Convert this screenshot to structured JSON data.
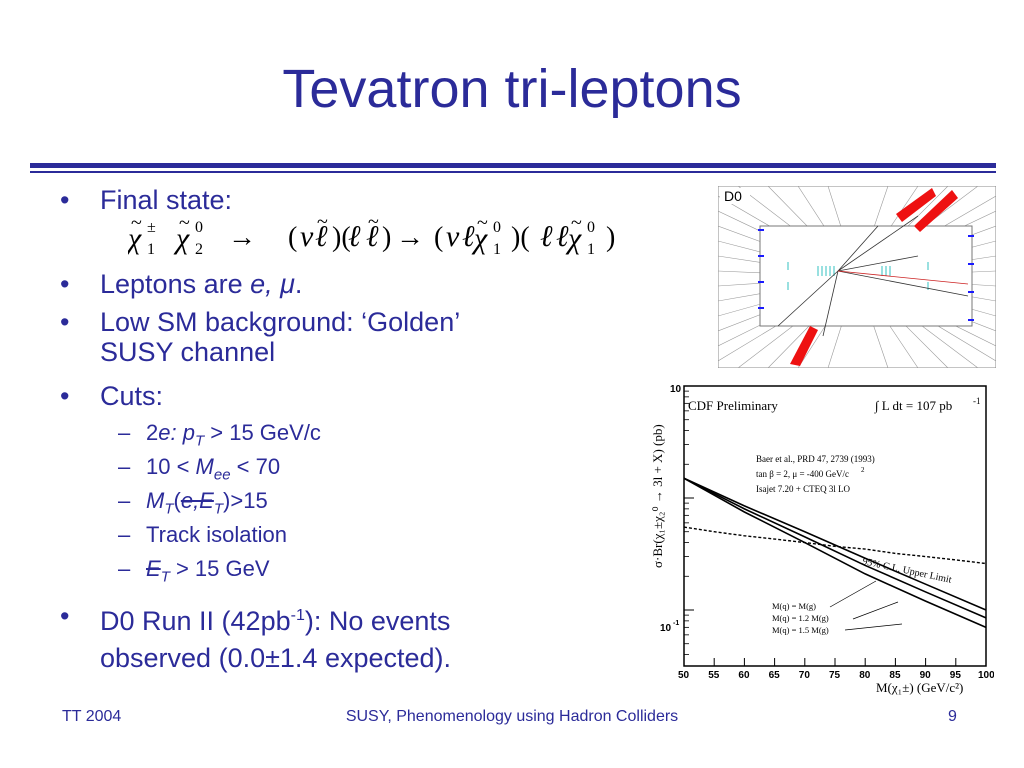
{
  "title": "Tevatron tri-leptons",
  "bullets": {
    "final_state": "Final state:",
    "leptons_prefix": "Leptons are ",
    "leptons_em": "e, μ",
    "leptons_suffix": ".",
    "low_sm_line1": "Low SM background: ‘Golden’",
    "low_sm_line2": "SUSY channel",
    "cuts": "Cuts:",
    "d0_line1_a": "D0 Run II (42pb",
    "d0_line1_sup": "-1",
    "d0_line1_b": "): No events",
    "d0_line2": "observed (0.0±1.4 expected)."
  },
  "cuts": [
    {
      "dash": "–",
      "parts": [
        "2",
        "e",
        ": p",
        "T",
        " > 15 GeV/c"
      ]
    },
    {
      "dash": "–",
      "parts": [
        "10 < ",
        "M",
        "ee",
        " < 70"
      ]
    },
    {
      "dash": "–",
      "parts": [
        "M",
        "T",
        "(",
        "e,E",
        "T",
        ")>15"
      ]
    },
    {
      "dash": "–",
      "text": "Track isolation"
    },
    {
      "dash": "–",
      "parts": [
        "E",
        "T",
        " > 15 GeV"
      ]
    }
  ],
  "formula": {
    "chi": "χ",
    "sub1": "1",
    "sub2": "2",
    "sup_pm": "±",
    "sup0": "0",
    "arrow": "→",
    "nu": "ν",
    "ell": "ℓ",
    "tilde": "~"
  },
  "event_display": {
    "label": "D0"
  },
  "plot": {
    "header": "CDF Preliminary",
    "lumi": "∫ L dt = 107 pb",
    "lumi_sup": "-1",
    "ref1": "Baer et al., PRD 47, 2739 (1993)",
    "ref2": "tan β = 2, μ = -400 GeV/c",
    "ref2_sup": "2",
    "ref3": "Isajet 7.20 + CTEQ 3l LO",
    "limit_label": "95% C.L. Upper Limit",
    "legend": [
      "M(q) = M(g)",
      "M(q) = 1.2 M(g)",
      "M(q) = 1.5 M(g)"
    ],
    "ylabel": "σ·Br(χ₁±χ₂⁰ → 3l + X) (pb)",
    "xlabel": "M(χ₁±) (GeV/c²)",
    "ytick_top": "10",
    "ytick_mid_base": "10",
    "ytick_mid_exp": "-1"
  },
  "chart_data": {
    "type": "line",
    "xlim": [
      50,
      100
    ],
    "ylim_log10": [
      -1.5,
      1
    ],
    "x_ticks": [
      50,
      55,
      60,
      65,
      70,
      75,
      80,
      85,
      90,
      95,
      100
    ],
    "x_tick_labels": [
      "50",
      "55",
      "60",
      "65",
      "70",
      "75",
      "80",
      "85",
      "90",
      "95",
      "100"
    ],
    "series": [
      {
        "name": "95% C.L. Upper Limit",
        "style": "dashed",
        "x": [
          50,
          55,
          60,
          65,
          70,
          75,
          80,
          85,
          90,
          95,
          100
        ],
        "y": [
          0.55,
          0.5,
          0.46,
          0.43,
          0.4,
          0.37,
          0.35,
          0.32,
          0.3,
          0.28,
          0.26
        ]
      },
      {
        "name": "M(q) = M(g)",
        "style": "solid",
        "x": [
          50,
          60,
          70,
          80,
          90,
          100
        ],
        "y": [
          1.5,
          0.75,
          0.4,
          0.21,
          0.12,
          0.07
        ]
      },
      {
        "name": "M(q) = 1.2 M(g)",
        "style": "solid",
        "x": [
          50,
          60,
          70,
          80,
          90,
          100
        ],
        "y": [
          1.5,
          0.8,
          0.45,
          0.25,
          0.145,
          0.085
        ]
      },
      {
        "name": "M(q) = 1.5 M(g)",
        "style": "solid",
        "x": [
          50,
          60,
          70,
          80,
          90,
          100
        ],
        "y": [
          1.5,
          0.85,
          0.5,
          0.29,
          0.17,
          0.1
        ]
      }
    ]
  },
  "footer": {
    "left": "TT 2004",
    "center": "SUSY, Phenomenology using Hadron Colliders",
    "page": "9"
  },
  "colors": {
    "text": "#2b2b99",
    "rule": "#2b2b99",
    "calorimeter_red": "#ee1111",
    "track_blue": "#1a1aff"
  }
}
